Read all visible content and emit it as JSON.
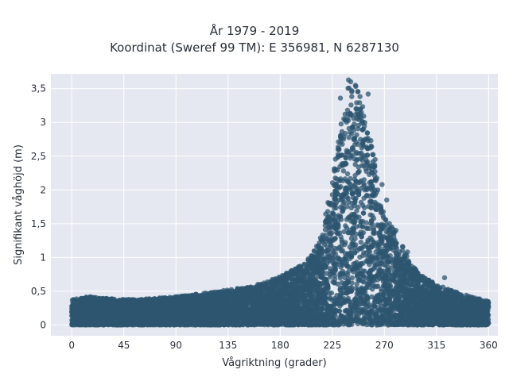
{
  "chart_data": {
    "type": "scatter",
    "title": "År 1979 - 2019",
    "subtitle": "Koordinat (Sweref 99 TM): E 356981, N 6287130",
    "xlabel": "Vågriktning (grader)",
    "ylabel": "Signifikant våghöjd (m)",
    "xlim": [
      -18,
      368
    ],
    "ylim": [
      -0.16,
      3.72
    ],
    "x_ticks": [
      0,
      45,
      90,
      135,
      180,
      225,
      270,
      315,
      360
    ],
    "x_tick_labels": [
      "0",
      "45",
      "90",
      "135",
      "180",
      "225",
      "270",
      "315",
      "360"
    ],
    "y_ticks": [
      0,
      0.5,
      1,
      1.5,
      2,
      2.5,
      3,
      3.5
    ],
    "y_tick_labels": [
      "0",
      "0,5",
      "1",
      "1,5",
      "2",
      "2,5",
      "3",
      "3,5"
    ],
    "grid": true,
    "marker_color": "#2e5570",
    "background_color": "#e5e8f0",
    "grid_color": "#ffffff",
    "envelope": {
      "description_x": [
        0,
        15,
        30,
        45,
        60,
        75,
        90,
        105,
        120,
        135,
        150,
        165,
        180,
        195,
        205,
        215,
        222,
        230,
        236,
        240,
        244,
        248,
        252,
        256,
        260,
        265,
        270,
        280,
        290,
        300,
        315,
        330,
        345,
        360
      ],
      "upper_y": [
        0.38,
        0.42,
        0.4,
        0.38,
        0.38,
        0.4,
        0.42,
        0.45,
        0.48,
        0.52,
        0.56,
        0.62,
        0.72,
        0.85,
        1.0,
        1.3,
        1.9,
        2.7,
        3.5,
        3.62,
        3.55,
        3.5,
        3.3,
        3.0,
        2.6,
        2.0,
        1.6,
        1.4,
        1.0,
        0.75,
        0.6,
        0.5,
        0.42,
        0.35
      ],
      "lower_y": [
        0.0,
        0.0,
        0.0,
        0.0,
        0.0,
        0.0,
        0.0,
        0.0,
        0.0,
        0.0,
        0.0,
        0.0,
        0.0,
        0.0,
        0.0,
        0.0,
        0.0,
        0.0,
        0.0,
        0.0,
        0.0,
        0.0,
        0.0,
        0.0,
        0.0,
        0.0,
        0.0,
        0.0,
        0.0,
        0.0,
        0.0,
        0.0,
        0.0,
        0.0
      ]
    },
    "outliers": [
      {
        "x": 239,
        "y": 3.63
      },
      {
        "x": 245,
        "y": 3.55
      },
      {
        "x": 242,
        "y": 3.47
      },
      {
        "x": 232,
        "y": 3.36
      },
      {
        "x": 256,
        "y": 3.42
      },
      {
        "x": 230,
        "y": 2.6
      },
      {
        "x": 262,
        "y": 2.45
      },
      {
        "x": 268,
        "y": 2.08
      },
      {
        "x": 272,
        "y": 1.85
      },
      {
        "x": 280,
        "y": 1.4
      },
      {
        "x": 290,
        "y": 1.08
      },
      {
        "x": 303,
        "y": 0.72
      },
      {
        "x": 322,
        "y": 0.7
      },
      {
        "x": 196,
        "y": 0.8
      },
      {
        "x": 186,
        "y": 0.72
      },
      {
        "x": 208,
        "y": 0.95
      }
    ]
  }
}
